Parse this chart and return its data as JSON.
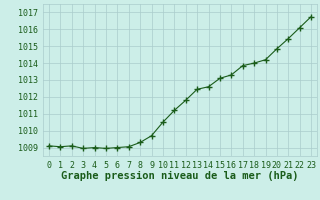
{
  "x": [
    0,
    1,
    2,
    3,
    4,
    5,
    6,
    7,
    8,
    9,
    10,
    11,
    12,
    13,
    14,
    15,
    16,
    17,
    18,
    19,
    20,
    21,
    22,
    23
  ],
  "y": [
    1009.1,
    1009.05,
    1009.1,
    1008.95,
    1009.0,
    1008.95,
    1009.0,
    1009.05,
    1009.3,
    1009.7,
    1010.5,
    1011.2,
    1011.8,
    1012.45,
    1012.6,
    1013.1,
    1013.3,
    1013.85,
    1014.0,
    1014.2,
    1014.85,
    1015.45,
    1016.1,
    1016.75
  ],
  "ylim": [
    1008.5,
    1017.5
  ],
  "yticks": [
    1009,
    1010,
    1011,
    1012,
    1013,
    1014,
    1015,
    1016,
    1017
  ],
  "xlim": [
    -0.5,
    23.5
  ],
  "xticks": [
    0,
    1,
    2,
    3,
    4,
    5,
    6,
    7,
    8,
    9,
    10,
    11,
    12,
    13,
    14,
    15,
    16,
    17,
    18,
    19,
    20,
    21,
    22,
    23
  ],
  "line_color": "#1a5c1a",
  "marker": "+",
  "marker_color": "#1a5c1a",
  "bg_color": "#cceee8",
  "grid_color": "#aacccc",
  "xlabel": "Graphe pression niveau de la mer (hPa)",
  "xlabel_color": "#1a5c1a",
  "tick_color": "#1a5c1a",
  "label_fontsize": 6.0,
  "xlabel_fontsize": 7.5
}
